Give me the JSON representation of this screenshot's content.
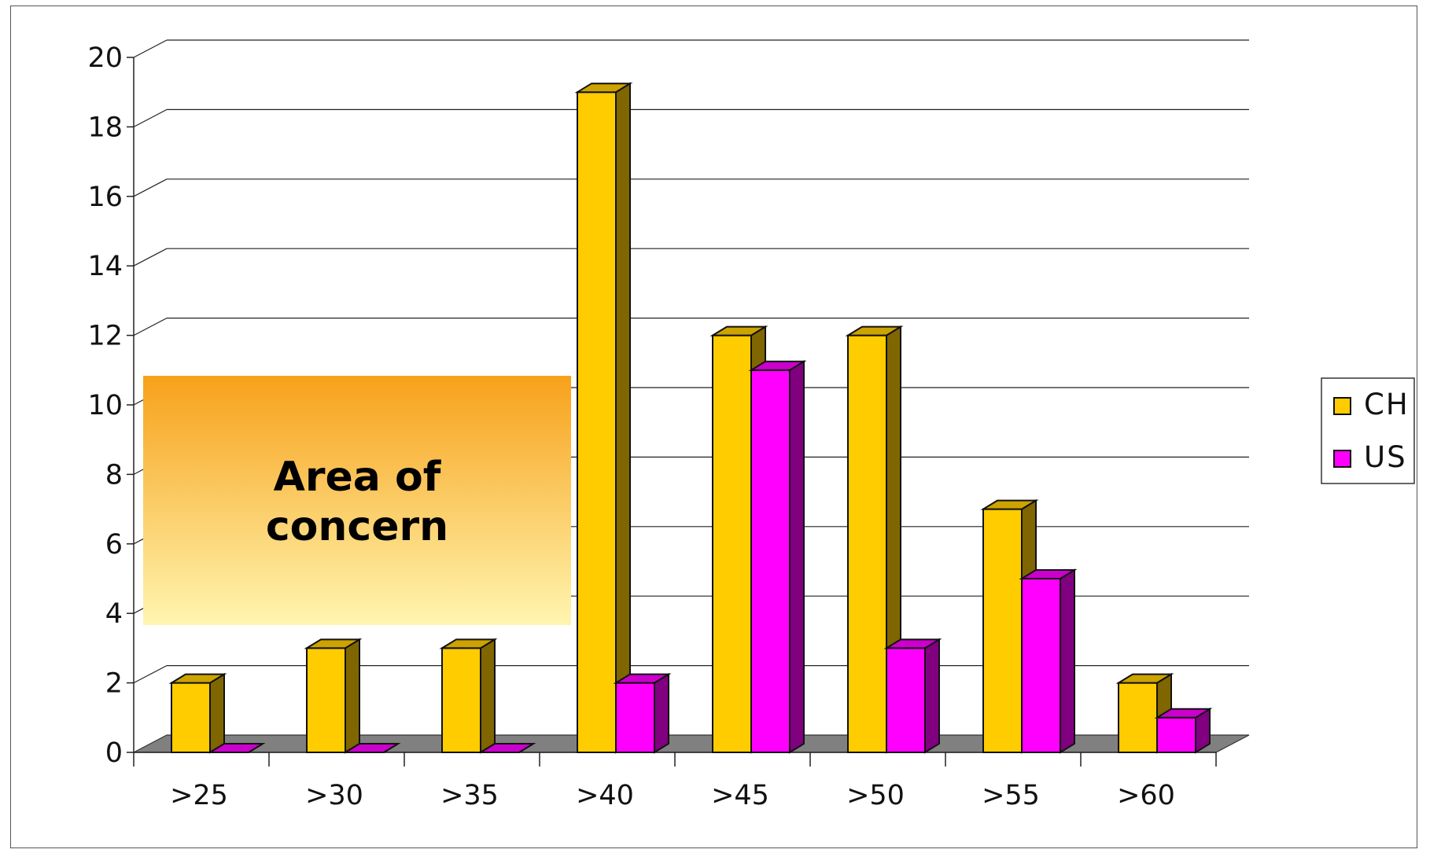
{
  "chart_data": {
    "type": "bar",
    "categories": [
      ">25",
      ">30",
      ">35",
      ">40",
      ">45",
      ">50",
      ">55",
      ">60"
    ],
    "series": [
      {
        "name": "CH",
        "values": [
          2,
          3,
          3,
          19,
          12,
          12,
          7,
          2
        ],
        "color": "#FFCC00"
      },
      {
        "name": "US",
        "values": [
          0,
          0,
          0,
          2,
          11,
          3,
          5,
          1
        ],
        "color": "#FF00FF"
      }
    ],
    "y_ticks": [
      "0",
      "2",
      "4",
      "6",
      "8",
      "10",
      "12",
      "14",
      "16",
      "18",
      "20"
    ],
    "ylim": [
      0,
      20
    ],
    "grid": true,
    "legend_position": "right",
    "annotation": {
      "lines": [
        "Area of",
        "concern"
      ],
      "gradient_top": "#F7A11A",
      "gradient_bottom": "#FFF5B0"
    }
  }
}
